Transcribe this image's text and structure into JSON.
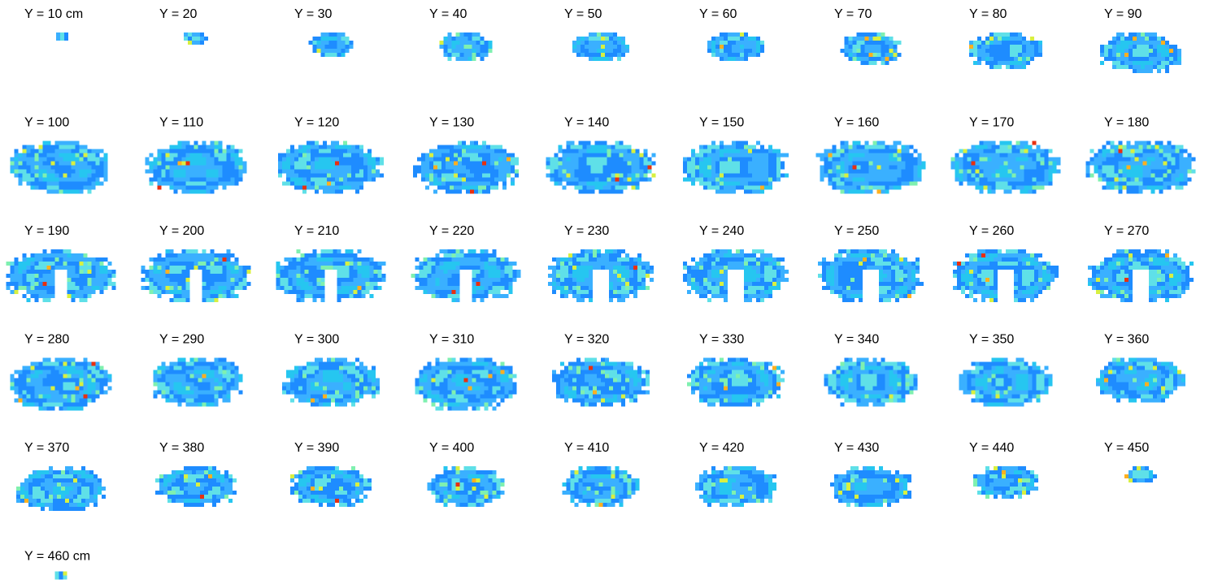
{
  "panels": [
    "Y = 10 cm",
    "Y = 20",
    "Y = 30",
    "Y = 40",
    "Y = 50",
    "Y = 60",
    "Y = 70",
    "Y = 80",
    "Y = 90",
    "Y = 100",
    "Y = 110",
    "Y = 120",
    "Y = 130",
    "Y = 140",
    "Y = 150",
    "Y = 160",
    "Y = 170",
    "Y = 180",
    "Y = 190",
    "Y = 200",
    "Y = 210",
    "Y = 220",
    "Y = 230",
    "Y = 240",
    "Y = 250",
    "Y = 260",
    "Y = 270",
    "Y = 280",
    "Y = 290",
    "Y = 300",
    "Y = 310",
    "Y = 320",
    "Y = 330",
    "Y = 340",
    "Y = 350",
    "Y = 360",
    "Y = 370",
    "Y = 380",
    "Y = 390",
    "Y = 400",
    "Y = 410",
    "Y = 420",
    "Y = 430",
    "Y = 440",
    "Y = 450",
    "Y = 460 cm"
  ]
}
